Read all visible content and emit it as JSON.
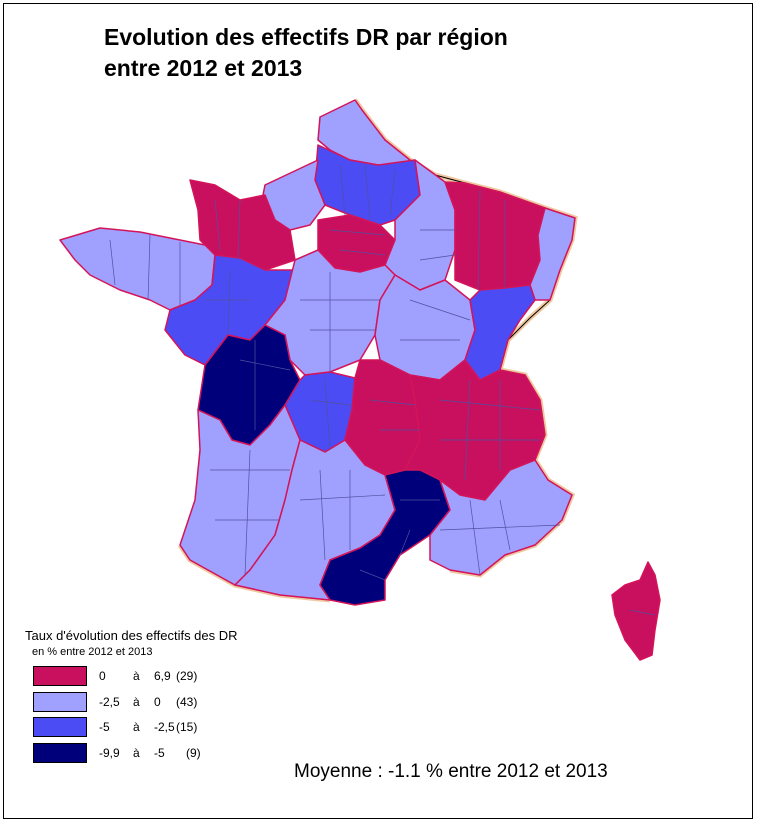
{
  "title": {
    "line1": "Evolution des effectifs DR par région",
    "line2": "entre 2012 et 2013"
  },
  "colors": {
    "class1": "#c8105e",
    "class2": "#a0a0ff",
    "class3": "#4c4cf5",
    "class4": "#00007a",
    "region_border": "#d4145a",
    "dept_border": "#5050a0"
  },
  "legend": {
    "title": "Taux d'évolution des effectifs des DR",
    "subtitle": "en % entre 2012 et 2013",
    "classes": [
      {
        "low": "0",
        "sep": "à",
        "high": "6,9",
        "count": "(29)"
      },
      {
        "low": "-2,5",
        "sep": "à",
        "high": "0",
        "count": "(43)"
      },
      {
        "low": "-5",
        "sep": "à",
        "high": "-2,5",
        "count": "(15)"
      },
      {
        "low": "-9,9",
        "sep": "à",
        "high": "-5",
        "count": "(9)"
      }
    ]
  },
  "average": "Moyenne : -1.1 % entre 2012 et 2013",
  "map_data": {
    "regions": [
      {
        "name": "Nord",
        "class": 2
      },
      {
        "name": "Picardie",
        "class": 3
      },
      {
        "name": "Haute-Normandie",
        "class": 2
      },
      {
        "name": "Basse-Normandie",
        "class": 1
      },
      {
        "name": "Bretagne",
        "class": 2
      },
      {
        "name": "Ile-de-France",
        "class": 1
      },
      {
        "name": "Champagne-Ardenne",
        "class": 2
      },
      {
        "name": "Lorraine",
        "class": 1
      },
      {
        "name": "Alsace",
        "class": 2
      },
      {
        "name": "Pays de la Loire",
        "class": 3
      },
      {
        "name": "Centre",
        "class": 2
      },
      {
        "name": "Bourgogne",
        "class": 2
      },
      {
        "name": "Franche-Comte",
        "class": 3
      },
      {
        "name": "Poitou-Charentes",
        "class": 4
      },
      {
        "name": "Limousin",
        "class": 3
      },
      {
        "name": "Auvergne",
        "class": 1
      },
      {
        "name": "Rhone-Alpes",
        "class": 1
      },
      {
        "name": "Aquitaine",
        "class": 2
      },
      {
        "name": "Midi-Pyrenees",
        "class": 2
      },
      {
        "name": "Languedoc-Roussillon",
        "class": 4
      },
      {
        "name": "Provence-Alpes-Cote d'Azur",
        "class": 2
      },
      {
        "name": "Corse",
        "class": 1
      }
    ]
  }
}
